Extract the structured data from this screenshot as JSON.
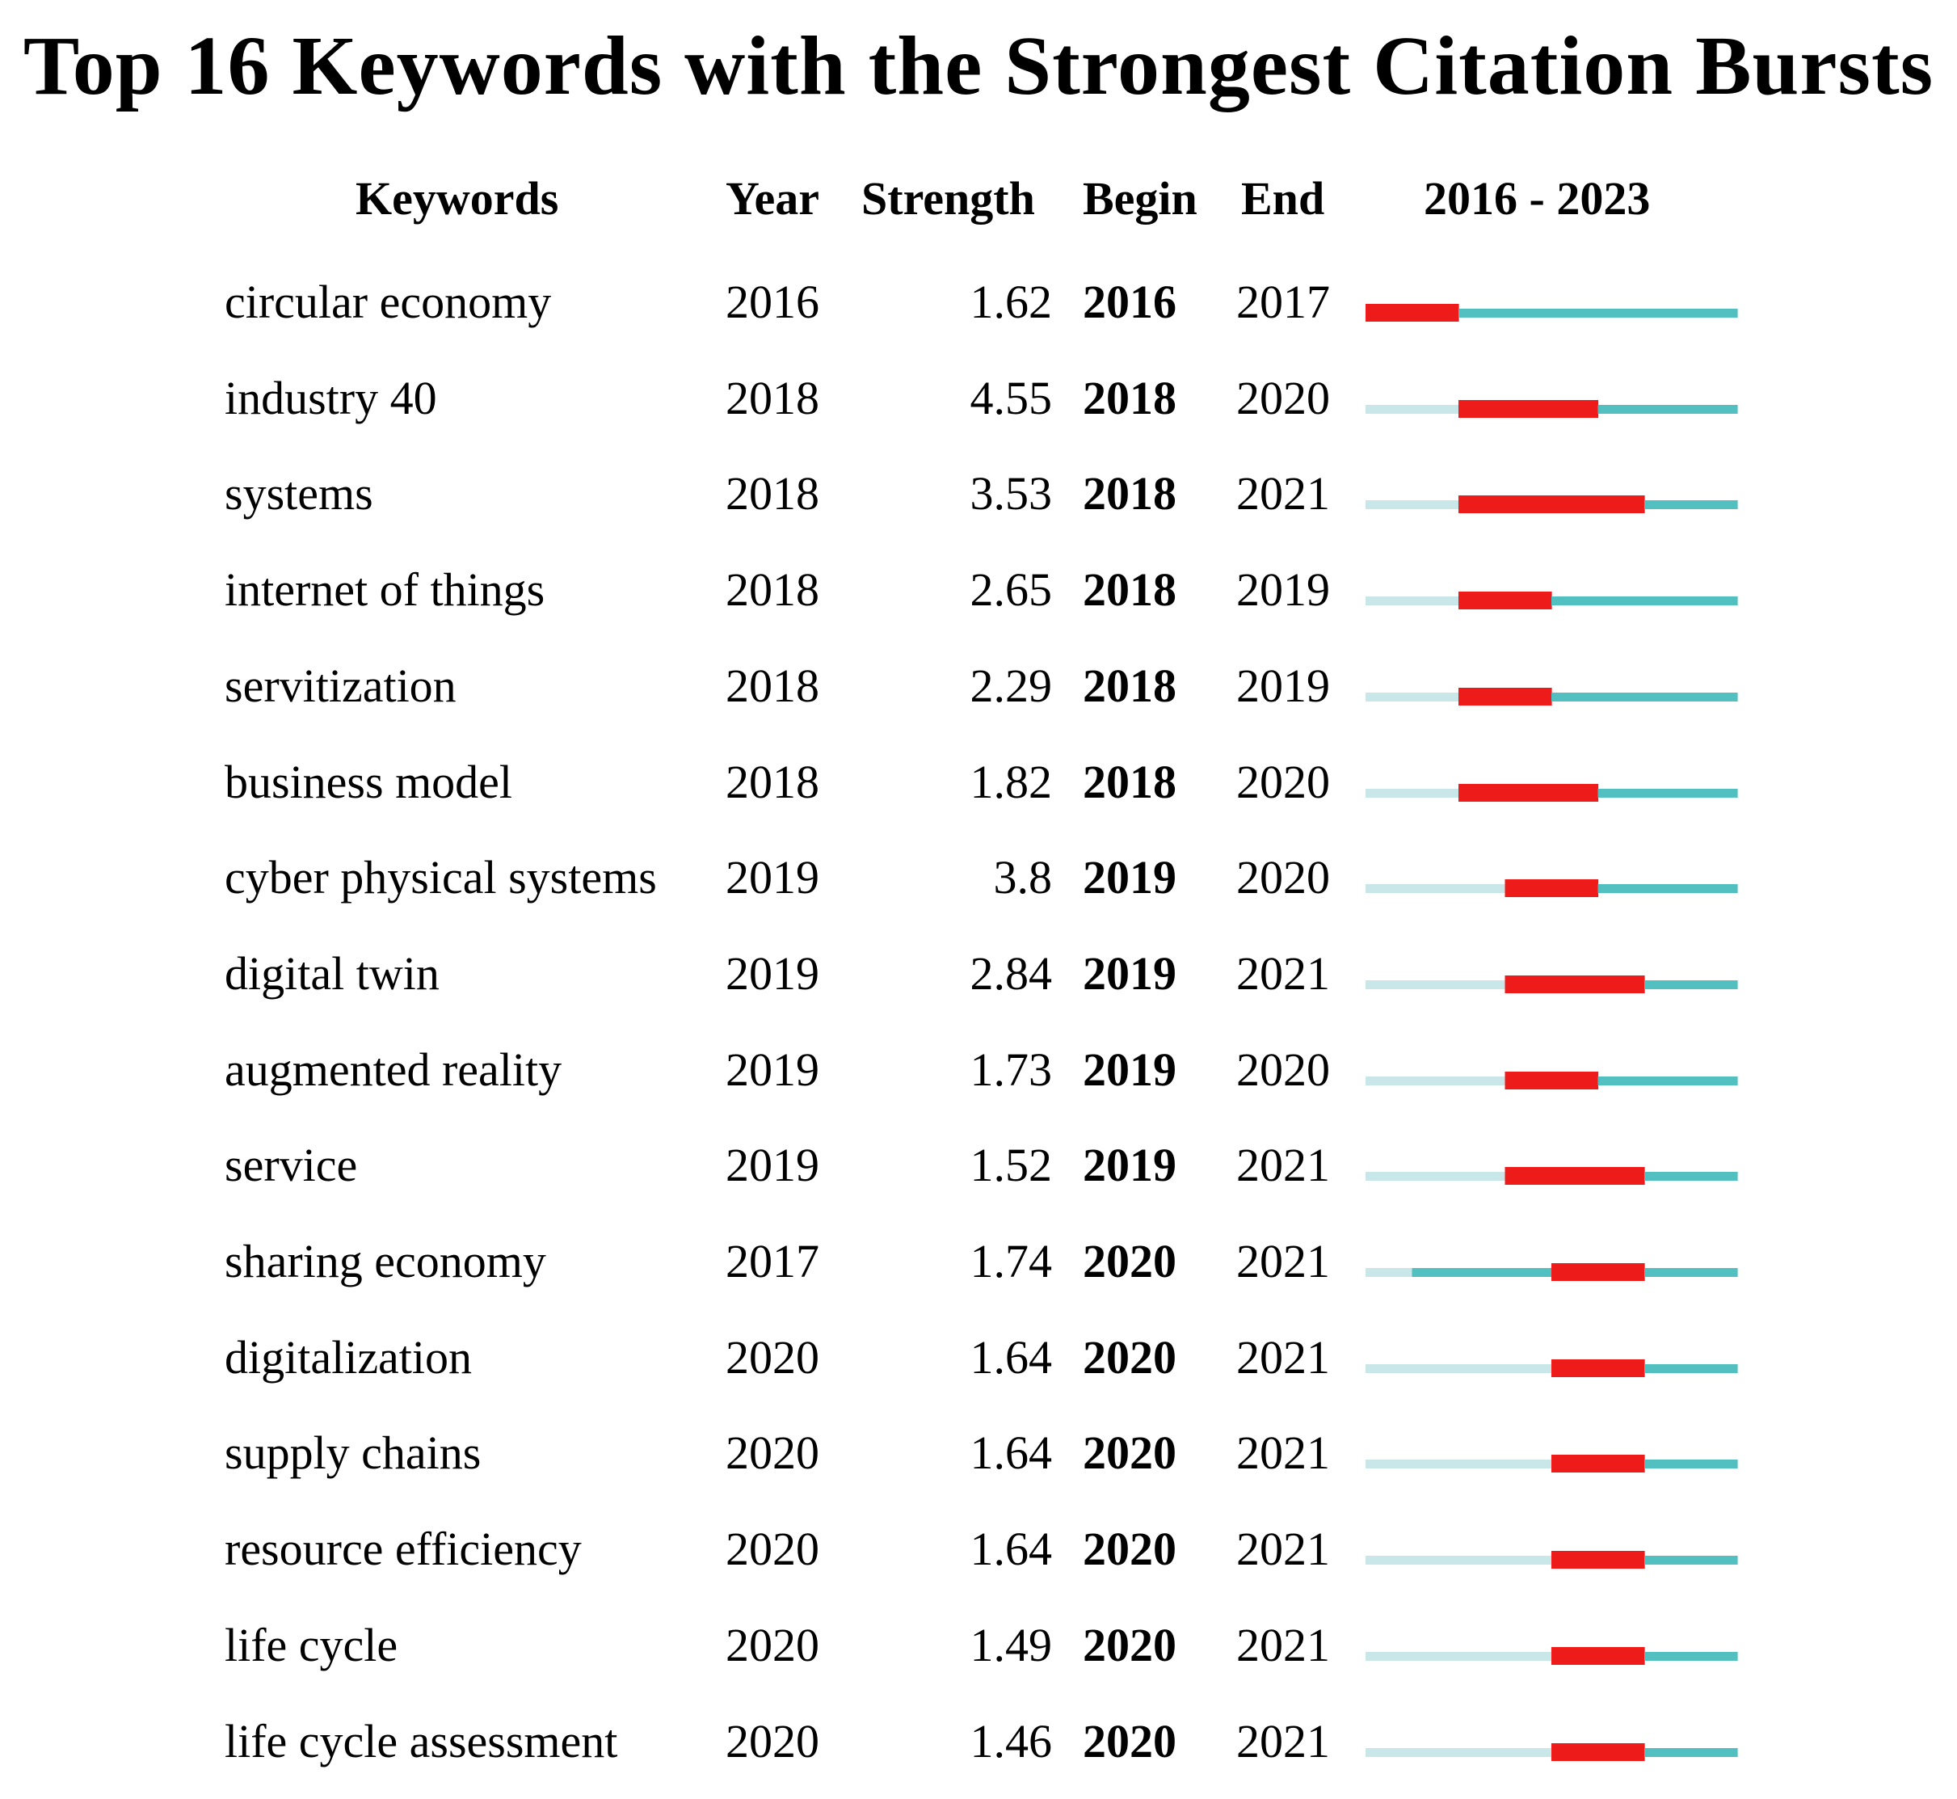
{
  "chart_data": {
    "type": "table",
    "title": "Top 16 Keywords with the Strongest Citation Bursts",
    "columns": [
      "Keywords",
      "Year",
      "Strength",
      "Begin",
      "End",
      "2016 - 2023"
    ],
    "range": [
      2016,
      2023
    ],
    "colors": {
      "burst": "#ee1b1b",
      "active": "#52bfc1",
      "inactive": "#c9e7e8"
    },
    "rows": [
      {
        "keyword": "circular economy",
        "year": "2016",
        "strength": "1.62",
        "begin": "2016",
        "end": "2017"
      },
      {
        "keyword": "industry 40",
        "year": "2018",
        "strength": "4.55",
        "begin": "2018",
        "end": "2020"
      },
      {
        "keyword": "systems",
        "year": "2018",
        "strength": "3.53",
        "begin": "2018",
        "end": "2021"
      },
      {
        "keyword": "internet of things",
        "year": "2018",
        "strength": "2.65",
        "begin": "2018",
        "end": "2019"
      },
      {
        "keyword": "servitization",
        "year": "2018",
        "strength": "2.29",
        "begin": "2018",
        "end": "2019"
      },
      {
        "keyword": "business model",
        "year": "2018",
        "strength": "1.82",
        "begin": "2018",
        "end": "2020"
      },
      {
        "keyword": "cyber physical systems",
        "year": "2019",
        "strength": "3.8",
        "begin": "2019",
        "end": "2020"
      },
      {
        "keyword": "digital twin",
        "year": "2019",
        "strength": "2.84",
        "begin": "2019",
        "end": "2021"
      },
      {
        "keyword": "augmented reality",
        "year": "2019",
        "strength": "1.73",
        "begin": "2019",
        "end": "2020"
      },
      {
        "keyword": "service",
        "year": "2019",
        "strength": "1.52",
        "begin": "2019",
        "end": "2021"
      },
      {
        "keyword": "sharing economy",
        "year": "2017",
        "strength": "1.74",
        "begin": "2020",
        "end": "2021"
      },
      {
        "keyword": "digitalization",
        "year": "2020",
        "strength": "1.64",
        "begin": "2020",
        "end": "2021"
      },
      {
        "keyword": "supply chains",
        "year": "2020",
        "strength": "1.64",
        "begin": "2020",
        "end": "2021"
      },
      {
        "keyword": "resource efficiency",
        "year": "2020",
        "strength": "1.64",
        "begin": "2020",
        "end": "2021"
      },
      {
        "keyword": "life cycle",
        "year": "2020",
        "strength": "1.49",
        "begin": "2020",
        "end": "2021"
      },
      {
        "keyword": "life cycle assessment",
        "year": "2020",
        "strength": "1.46",
        "begin": "2020",
        "end": "2021"
      }
    ]
  }
}
